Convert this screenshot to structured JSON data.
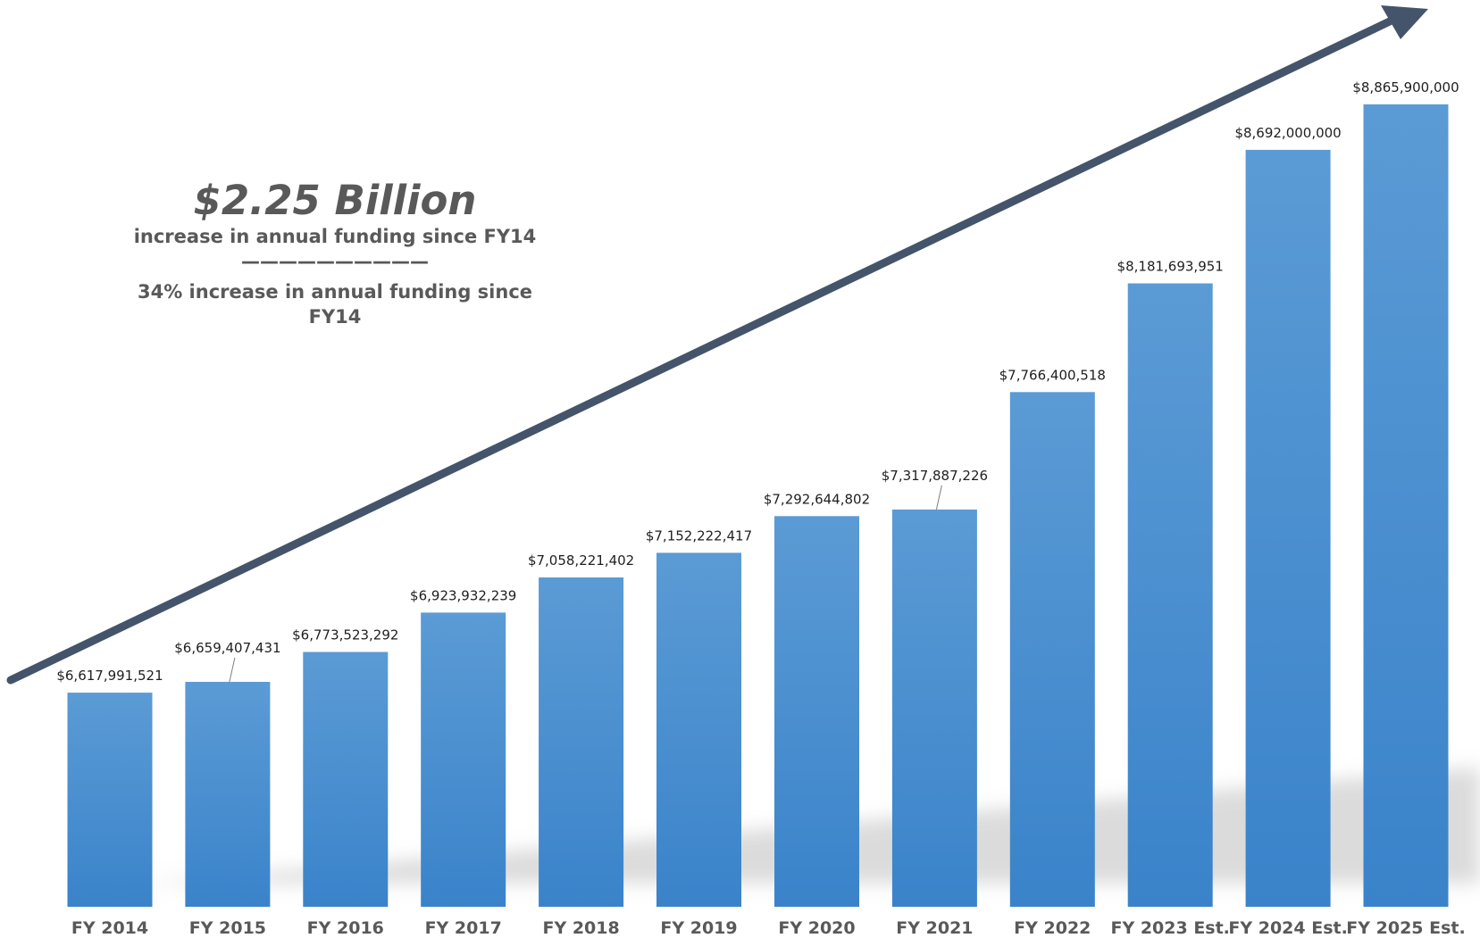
{
  "chart_data": {
    "type": "bar",
    "categories": [
      "FY 2014",
      "FY 2015",
      "FY 2016",
      "FY 2017",
      "FY 2018",
      "FY 2019",
      "FY 2020",
      "FY 2021",
      "FY 2022",
      "FY 2023 Est.",
      "FY 2024 Est.",
      "FY 2025 Est."
    ],
    "values": [
      6617991521,
      6659407431,
      6773523292,
      6923932239,
      7058221402,
      7152222417,
      7292644802,
      7317887226,
      7766400518,
      8181693951,
      8692000000,
      8865900000
    ],
    "data_labels": [
      "$6,617,991,521",
      "$6,659,407,431",
      "$6,773,523,292",
      "$6,923,932,239",
      "$7,058,221,402",
      "$7,152,222,417",
      "$7,292,644,802",
      "$7,317,887,226",
      "$7,766,400,518",
      "$8,181,693,951",
      "$8,692,000,000",
      "$8,865,900,000"
    ],
    "ylim": [
      5800000000,
      8920000000
    ],
    "grid": false,
    "legend": "none",
    "bar_color_top": "#5b9bd5",
    "bar_color_bottom": "#3a83ca",
    "arrow_color": "#44546a"
  },
  "annotation": {
    "headline": "$2.25 Billion",
    "line1": "increase in annual funding since FY14",
    "divider": "——————————",
    "line2a": "34% increase in annual funding since",
    "line2b": "FY14"
  }
}
